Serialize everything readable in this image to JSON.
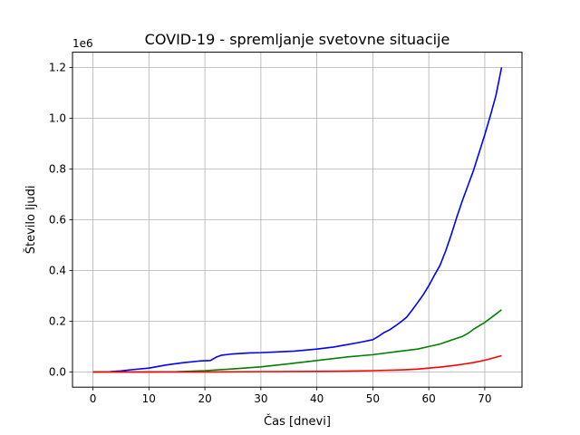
{
  "chart_data": {
    "type": "line",
    "title": "COVID-19 - spremljanje svetovne situacije",
    "xlabel": "Čas [dnevi]",
    "ylabel": "Število ljudi",
    "y_offset_text": "1e6",
    "xlim": [
      -3.65,
      76.65
    ],
    "ylim": [
      -0.06,
      1.26
    ],
    "x_ticks": [
      0,
      10,
      20,
      30,
      40,
      50,
      60,
      70
    ],
    "x_tick_labels": [
      "0",
      "10",
      "20",
      "30",
      "40",
      "50",
      "60",
      "70"
    ],
    "y_ticks": [
      0.0,
      0.2,
      0.4,
      0.6,
      0.8,
      1.0,
      1.2
    ],
    "y_tick_labels": [
      "0.0",
      "0.2",
      "0.4",
      "0.6",
      "0.8",
      "1.0",
      "1.2"
    ],
    "grid": true,
    "series": [
      {
        "color": "#0000ff",
        "x": [
          0,
          3,
          5,
          7,
          10,
          13,
          16,
          19,
          21,
          22,
          23,
          25,
          28,
          30,
          33,
          36,
          40,
          43,
          45,
          48,
          50,
          51,
          52,
          53,
          54,
          55,
          56,
          57,
          58,
          59,
          60,
          61,
          62,
          63,
          64,
          65,
          66,
          67,
          68,
          69,
          70,
          71,
          72,
          73
        ],
        "y": [
          0.0,
          0.001,
          0.004,
          0.009,
          0.015,
          0.027,
          0.036,
          0.043,
          0.045,
          0.058,
          0.066,
          0.071,
          0.075,
          0.076,
          0.079,
          0.082,
          0.09,
          0.098,
          0.106,
          0.118,
          0.127,
          0.14,
          0.155,
          0.166,
          0.181,
          0.197,
          0.215,
          0.243,
          0.273,
          0.304,
          0.34,
          0.381,
          0.42,
          0.476,
          0.54,
          0.61,
          0.675,
          0.735,
          0.795,
          0.865,
          0.935,
          1.01,
          1.09,
          1.2
        ]
      },
      {
        "color": "#008000",
        "x": [
          0,
          5,
          10,
          15,
          20,
          25,
          30,
          35,
          40,
          45,
          50,
          55,
          58,
          60,
          62,
          64,
          66,
          67,
          68,
          70,
          72,
          73
        ],
        "y": [
          0.0,
          0.0,
          0.0,
          0.001,
          0.005,
          0.012,
          0.02,
          0.032,
          0.045,
          0.058,
          0.068,
          0.082,
          0.09,
          0.1,
          0.11,
          0.125,
          0.14,
          0.152,
          0.168,
          0.195,
          0.228,
          0.245
        ]
      },
      {
        "color": "#ff0000",
        "x": [
          0,
          10,
          20,
          30,
          40,
          45,
          50,
          55,
          58,
          60,
          62,
          64,
          66,
          68,
          70,
          71,
          72,
          73
        ],
        "y": [
          0.0,
          0.0,
          0.0,
          0.001,
          0.002,
          0.003,
          0.005,
          0.008,
          0.011,
          0.015,
          0.019,
          0.024,
          0.03,
          0.037,
          0.046,
          0.052,
          0.058,
          0.064
        ]
      }
    ]
  }
}
